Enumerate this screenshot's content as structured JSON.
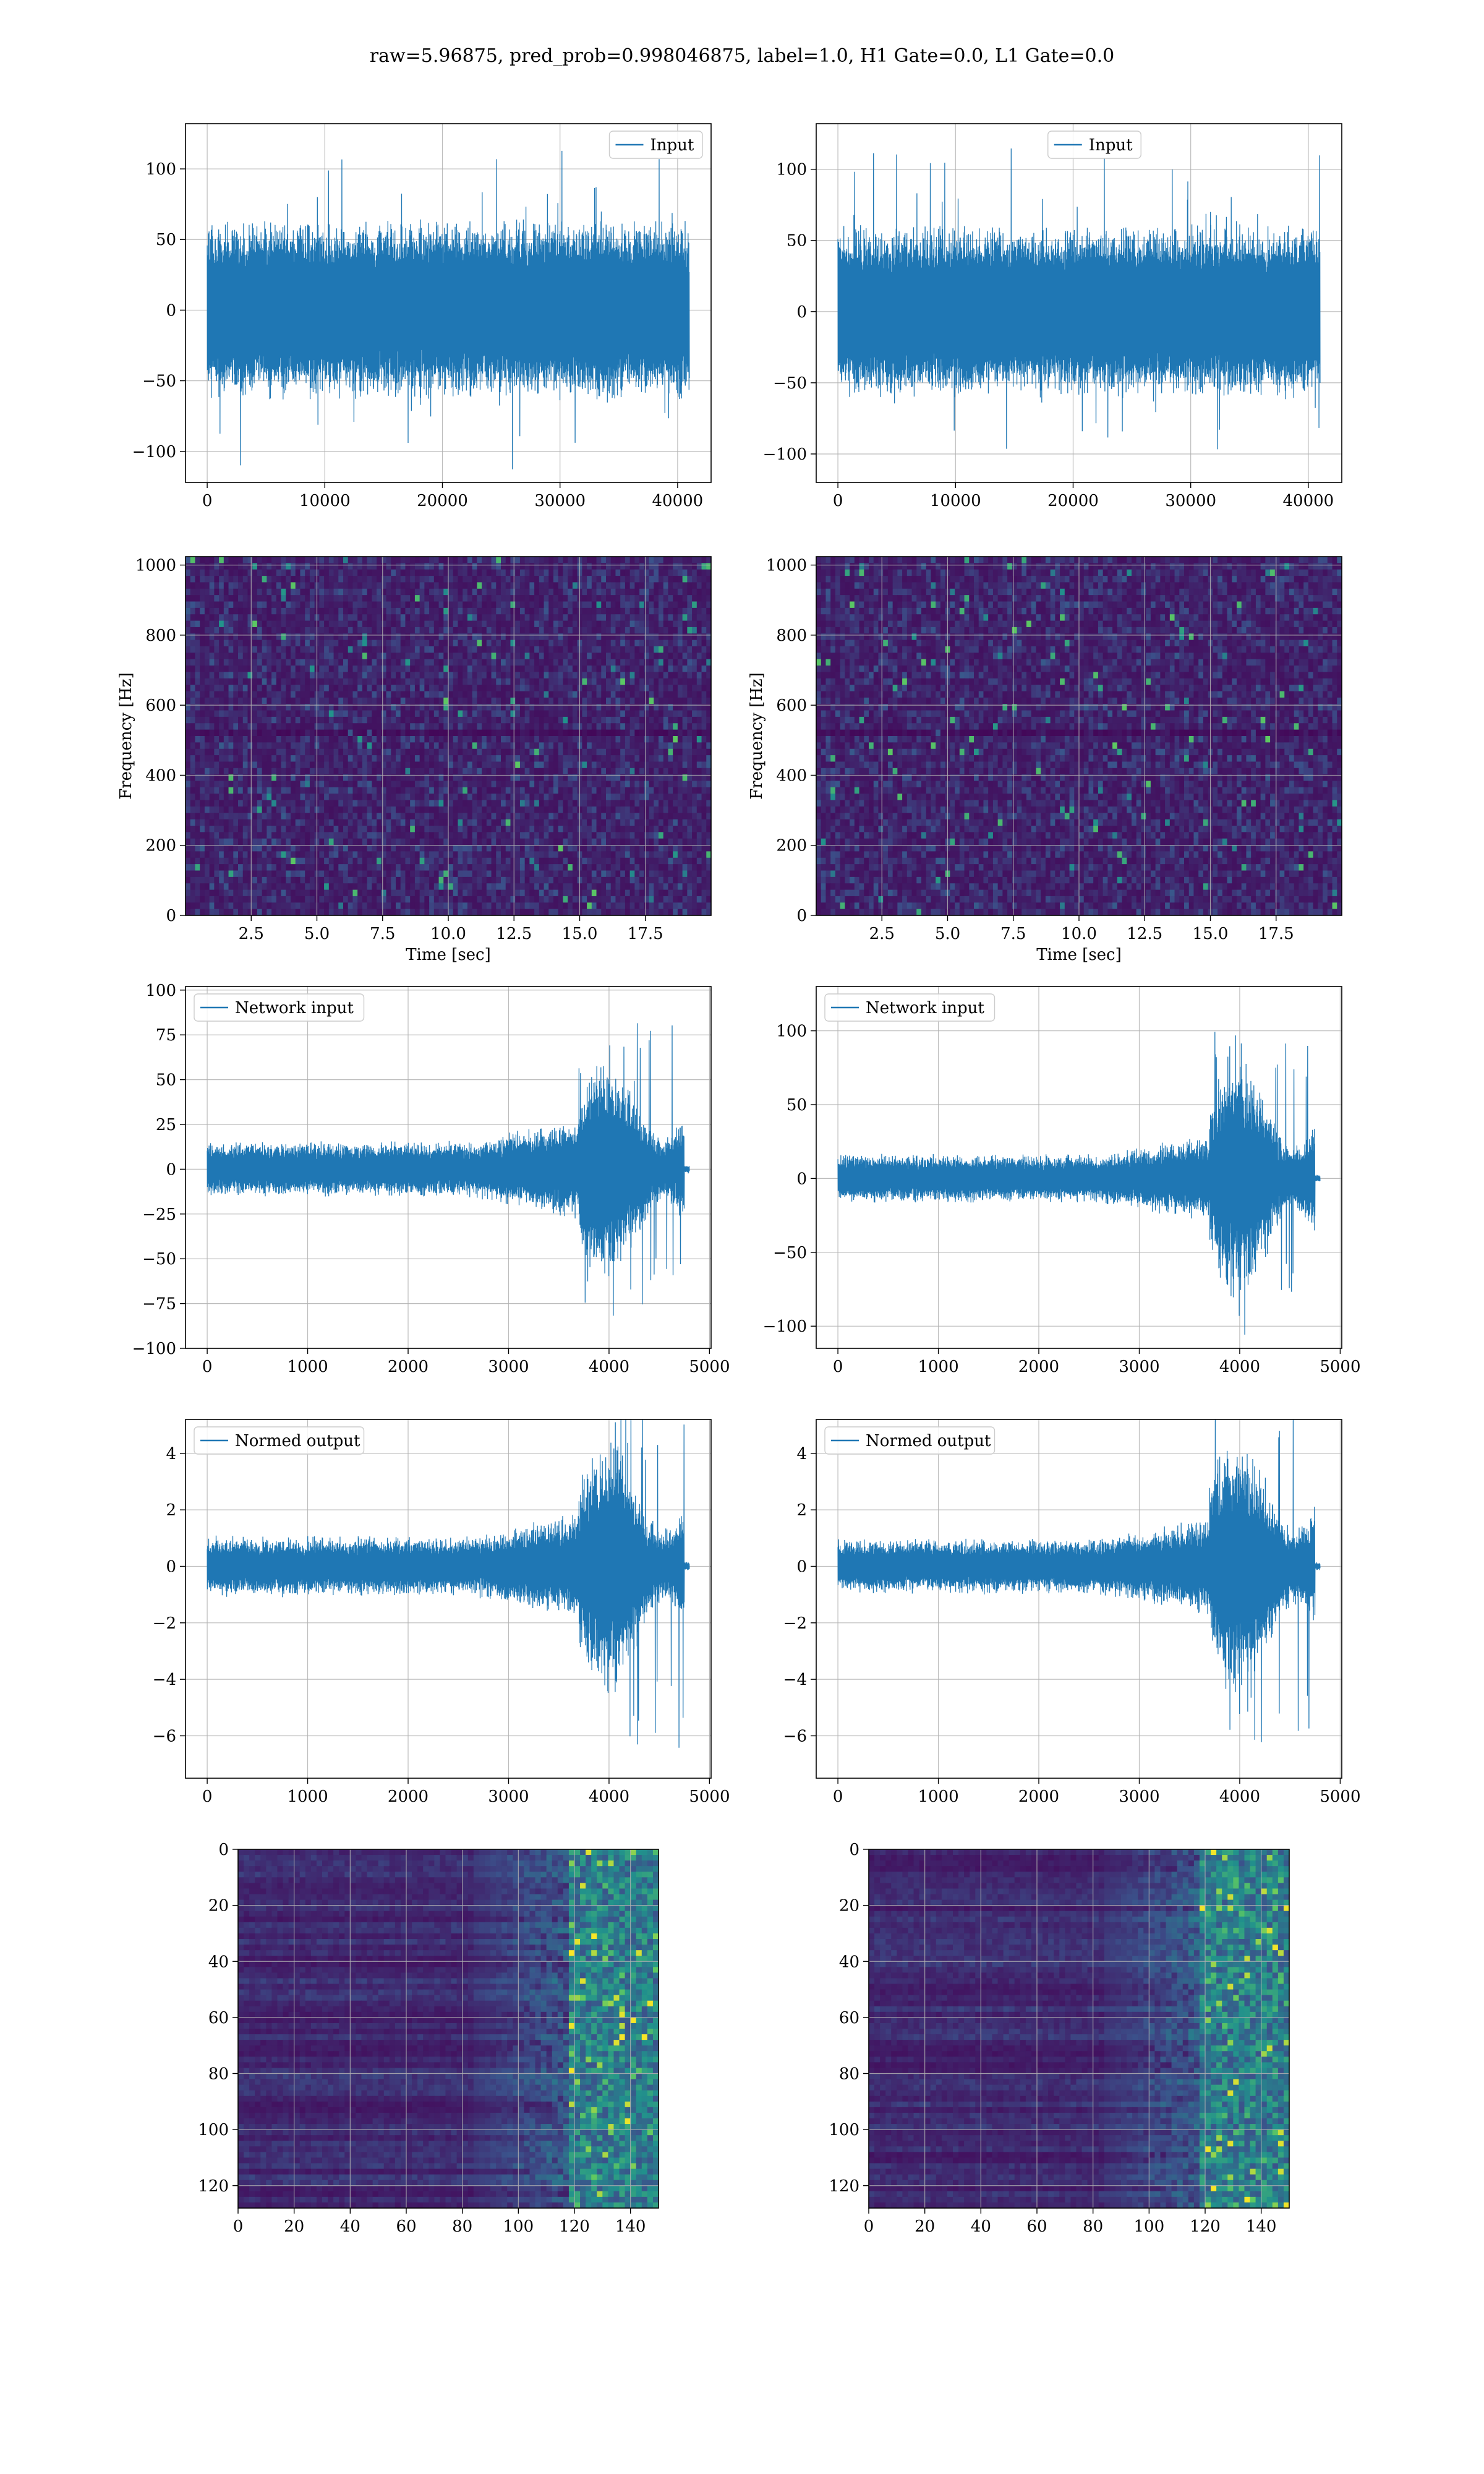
{
  "figure": {
    "title": "raw=5.96875, pred_prob=0.998046875, label=1.0, H1 Gate=0.0, L1 Gate=0.0",
    "colors": {
      "line": "#1f77b4",
      "grid": "#b0b0b0",
      "viridis_low": "#440154",
      "viridis_high": "#fde725"
    }
  },
  "chart_data": [
    {
      "id": "input-h1",
      "type": "line",
      "legend": [
        "Input"
      ],
      "legend_loc": "upper right",
      "x": [
        0,
        41000
      ],
      "ylim": [
        -122,
        132
      ],
      "xticks": [
        0,
        10000,
        20000,
        30000,
        40000
      ],
      "yticks": [
        -100,
        -50,
        0,
        50,
        100
      ],
      "grid": true,
      "envelope": {
        "typical": 65,
        "peak": 122
      }
    },
    {
      "id": "input-l1",
      "type": "line",
      "legend": [
        "Input"
      ],
      "legend_loc": "upper center",
      "x": [
        0,
        41000
      ],
      "ylim": [
        -120,
        132
      ],
      "xticks": [
        0,
        10000,
        20000,
        30000,
        40000
      ],
      "yticks": [
        -100,
        -50,
        0,
        50,
        100
      ],
      "grid": true,
      "envelope": {
        "typical": 62,
        "peak": 125
      }
    },
    {
      "id": "spectrogram-h1",
      "type": "heatmap",
      "xlabel": "Time [sec]",
      "ylabel": "Frequency [Hz]",
      "xlim": [
        0,
        20
      ],
      "ylim": [
        0,
        1024
      ],
      "xticks": [
        2.5,
        5.0,
        7.5,
        10.0,
        12.5,
        15.0,
        17.5
      ],
      "yticks": [
        0,
        200,
        400,
        600,
        800,
        1000
      ],
      "grid": true,
      "colormap": "viridis"
    },
    {
      "id": "spectrogram-l1",
      "type": "heatmap",
      "xlabel": "Time [sec]",
      "ylabel": "Frequency [Hz]",
      "xlim": [
        0,
        20
      ],
      "ylim": [
        0,
        1024
      ],
      "xticks": [
        2.5,
        5.0,
        7.5,
        10.0,
        12.5,
        15.0,
        17.5
      ],
      "yticks": [
        0,
        200,
        400,
        600,
        800,
        1000
      ],
      "grid": true,
      "colormap": "viridis"
    },
    {
      "id": "network-input-h1",
      "type": "line",
      "legend": [
        "Network input"
      ],
      "legend_loc": "upper left",
      "x": [
        0,
        4800
      ],
      "ylim": [
        -100,
        102
      ],
      "xticks": [
        0,
        1000,
        2000,
        3000,
        4000,
        5000
      ],
      "yticks": [
        -100,
        -75,
        -50,
        -25,
        0,
        25,
        50,
        75,
        100
      ],
      "grid": true,
      "envelope": {
        "baseline": 16,
        "rise_start": 2600,
        "burst_start": 3700,
        "burst_end": 4750,
        "burst_peak": 95
      }
    },
    {
      "id": "network-input-l1",
      "type": "line",
      "legend": [
        "Network input"
      ],
      "legend_loc": "upper left",
      "x": [
        0,
        4800
      ],
      "ylim": [
        -115,
        130
      ],
      "xticks": [
        0,
        1000,
        2000,
        3000,
        4000,
        5000
      ],
      "yticks": [
        -100,
        -50,
        0,
        50,
        100
      ],
      "grid": true,
      "envelope": {
        "baseline": 17,
        "rise_start": 2600,
        "burst_start": 3700,
        "burst_end": 4750,
        "burst_peak": 120
      }
    },
    {
      "id": "normed-output-h1",
      "type": "line",
      "legend": [
        "Normed output"
      ],
      "legend_loc": "upper left",
      "x": [
        0,
        4800
      ],
      "ylim": [
        -7.5,
        5.2
      ],
      "xticks": [
        0,
        1000,
        2000,
        3000,
        4000,
        5000
      ],
      "yticks": [
        -6,
        -4,
        -2,
        0,
        2,
        4
      ],
      "grid": true,
      "envelope": {
        "baseline": 1.1,
        "rise_start": 2600,
        "burst_start": 3700,
        "burst_end": 4750,
        "burst_peak": 6.8
      }
    },
    {
      "id": "normed-output-l1",
      "type": "line",
      "legend": [
        "Normed output"
      ],
      "legend_loc": "upper left",
      "x": [
        0,
        4800
      ],
      "ylim": [
        -7.5,
        5.2
      ],
      "xticks": [
        0,
        1000,
        2000,
        3000,
        4000,
        5000
      ],
      "yticks": [
        -6,
        -4,
        -2,
        0,
        2,
        4
      ],
      "grid": true,
      "envelope": {
        "baseline": 1.0,
        "rise_start": 2600,
        "burst_start": 3700,
        "burst_end": 4750,
        "burst_peak": 6.9
      }
    },
    {
      "id": "feature-map-h1",
      "type": "heatmap",
      "xlim": [
        0,
        150
      ],
      "ylim": [
        128,
        0
      ],
      "xticks": [
        0,
        20,
        40,
        60,
        80,
        100,
        120,
        140
      ],
      "yticks": [
        0,
        20,
        40,
        60,
        80,
        100,
        120
      ],
      "grid": true,
      "colormap": "viridis"
    },
    {
      "id": "feature-map-l1",
      "type": "heatmap",
      "xlim": [
        0,
        150
      ],
      "ylim": [
        128,
        0
      ],
      "xticks": [
        0,
        20,
        40,
        60,
        80,
        100,
        120,
        140
      ],
      "yticks": [
        0,
        20,
        40,
        60,
        80,
        100,
        120
      ],
      "grid": true,
      "colormap": "viridis"
    }
  ]
}
